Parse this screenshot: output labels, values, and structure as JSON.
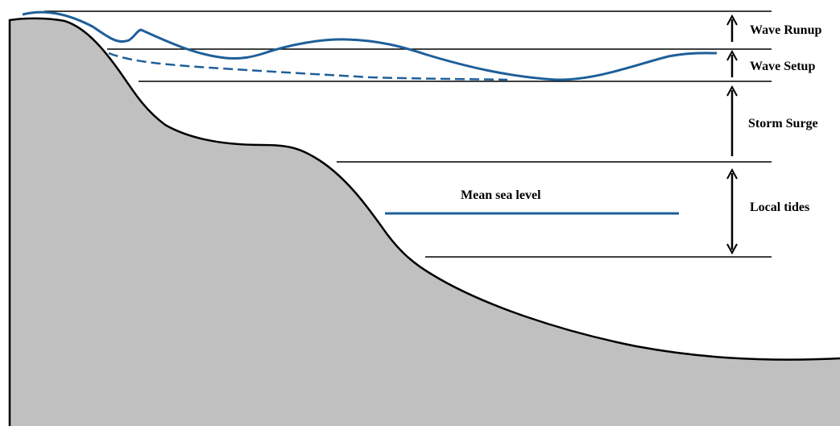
{
  "labels": {
    "wave_runup": "Wave Runup",
    "wave_setup": "Wave Setup",
    "storm_surge": "Storm Surge",
    "local_tides": "Local tides",
    "mean_sea_level": "Mean sea level"
  },
  "colors": {
    "land_fill": "#c0c0c0",
    "shoreline": "#000000",
    "water_line": "#1f5f9a",
    "level_line": "#000000",
    "text": "#000000"
  }
}
